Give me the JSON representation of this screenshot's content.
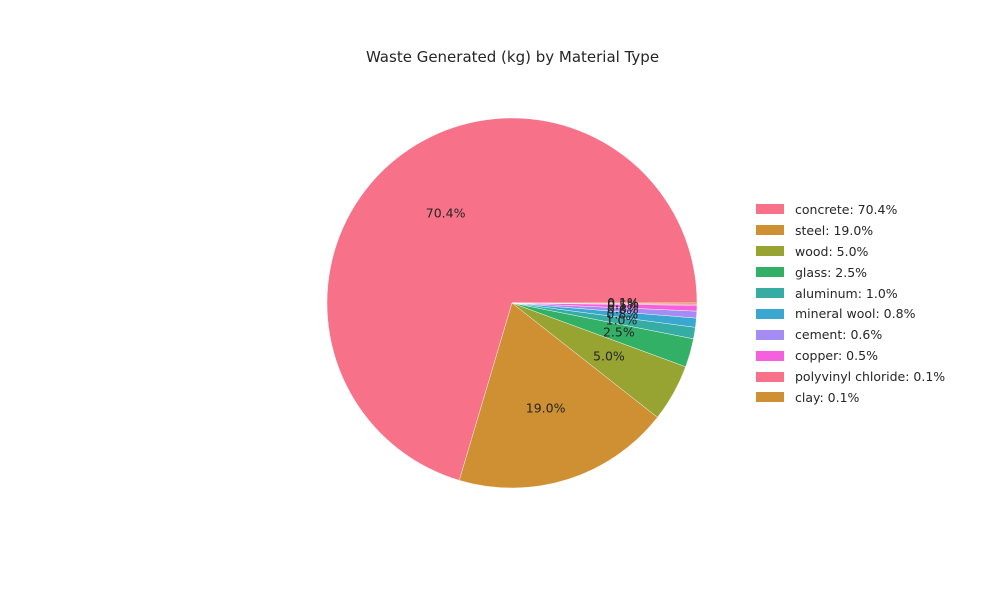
{
  "chart_data": {
    "type": "pie",
    "title": "Waste Generated (kg) by Material Type",
    "categories": [
      "concrete",
      "steel",
      "wood",
      "glass",
      "aluminum",
      "mineral wool",
      "cement",
      "copper",
      "polyvinyl chloride",
      "clay"
    ],
    "values": [
      70.4,
      19.0,
      5.0,
      2.5,
      1.0,
      0.8,
      0.6,
      0.5,
      0.1,
      0.1
    ],
    "slice_labels": [
      "70.4%",
      "19.0%",
      "5.0%",
      "2.5%",
      "1.0%",
      "0.8%",
      "0.6%",
      "0.5%",
      "0.1%",
      "0.1%"
    ],
    "legend_labels": [
      "concrete: 70.4%",
      "steel: 19.0%",
      "wood: 5.0%",
      "glass: 2.5%",
      "aluminum: 1.0%",
      "mineral wool: 0.8%",
      "cement: 0.6%",
      "copper: 0.5%",
      "polyvinyl chloride: 0.1%",
      "clay: 0.1%"
    ],
    "colors": [
      "#f77189",
      "#ce9032",
      "#97a431",
      "#32b166",
      "#36ada4",
      "#39a7d0",
      "#a48cf4",
      "#f561dd",
      "#f77189",
      "#ce9032"
    ],
    "start_angle": "3 o'clock",
    "direction": "counterclockwise",
    "legend_position": "right"
  }
}
